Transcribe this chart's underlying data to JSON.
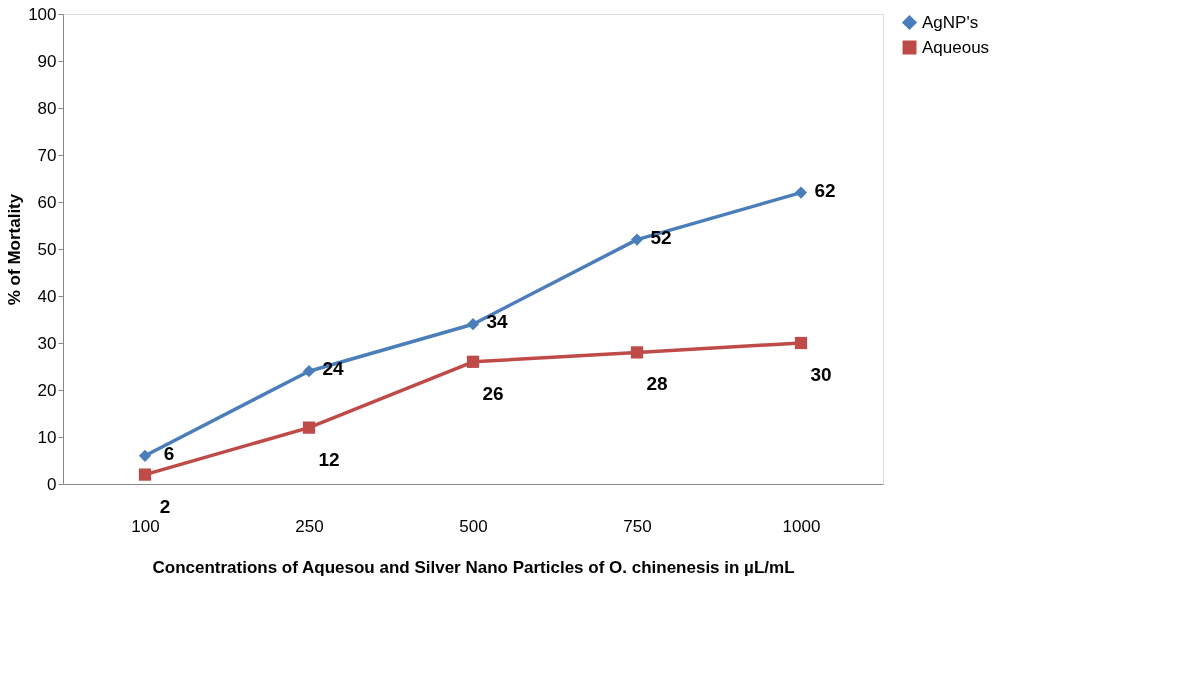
{
  "chart_data": {
    "type": "line",
    "xlabel": "Concentrations of Aquesou and Silver Nano Particles of O. chinenesis in µL/mL",
    "ylabel": "% of Mortality",
    "categories": [
      "100",
      "250",
      "500",
      "750",
      "1000"
    ],
    "series": [
      {
        "name": "AgNP's",
        "color": "#4a7ebb",
        "marker": "diamond",
        "values": [
          6,
          24,
          34,
          52,
          62
        ]
      },
      {
        "name": "Aqueous",
        "color": "#be4b48",
        "marker": "square",
        "values": [
          2,
          12,
          26,
          28,
          30
        ]
      }
    ],
    "ylim": [
      0,
      100
    ],
    "yticks": [
      0,
      10,
      20,
      30,
      40,
      50,
      60,
      70,
      80,
      90,
      100
    ],
    "grid": false,
    "legend": "right",
    "data_labels": true,
    "line_style": "solid"
  }
}
